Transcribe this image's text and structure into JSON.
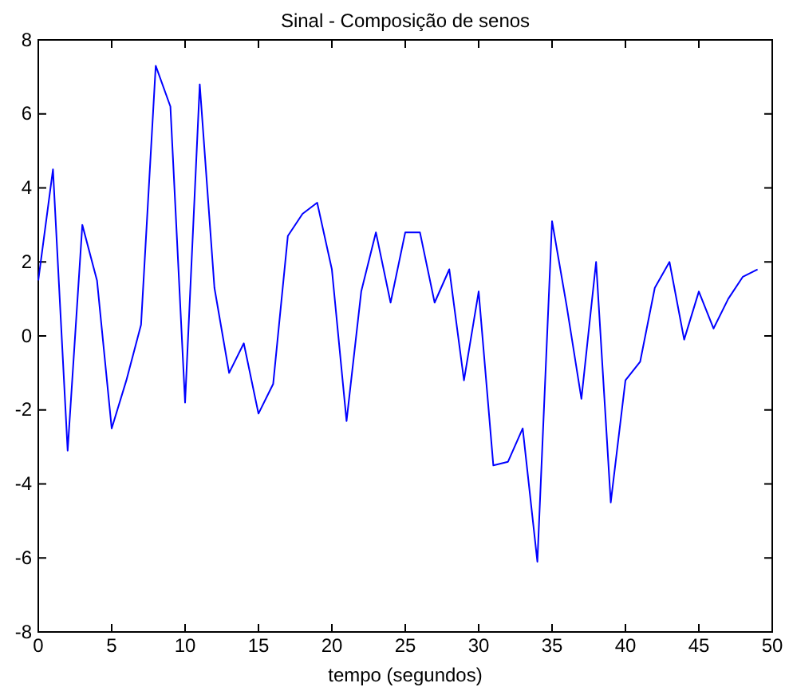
{
  "chart_data": {
    "type": "line",
    "title": "Sinal - Composição de senos",
    "xlabel": "tempo (segundos)",
    "x": [
      0,
      1,
      2,
      3,
      4,
      5,
      6,
      7,
      8,
      9,
      10,
      11,
      12,
      13,
      14,
      15,
      16,
      17,
      18,
      19,
      20,
      21,
      22,
      23,
      24,
      25,
      26,
      27,
      28,
      29,
      30,
      31,
      32,
      33,
      34,
      35,
      36,
      37,
      38,
      39,
      40,
      41,
      42,
      43,
      44,
      45,
      46,
      47,
      48,
      49
    ],
    "series": [
      {
        "color": "#0000ff",
        "values": [
          1.5,
          4.5,
          -3.1,
          3.0,
          1.5,
          -2.5,
          -1.2,
          0.3,
          7.3,
          6.2,
          -1.8,
          6.8,
          1.3,
          -1.0,
          -0.2,
          -2.1,
          -1.3,
          2.7,
          3.3,
          3.6,
          1.8,
          -2.3,
          1.2,
          2.8,
          0.9,
          2.8,
          2.8,
          0.9,
          1.8,
          -1.2,
          1.2,
          -3.5,
          -3.4,
          -2.5,
          -6.1,
          3.1,
          0.8,
          -1.7,
          2.0,
          -4.5,
          -1.2,
          -0.7,
          1.3,
          2.0,
          -0.1,
          1.2,
          0.2,
          1.0,
          1.6,
          1.8
        ]
      }
    ],
    "xlim": [
      0,
      50
    ],
    "xticks": [
      0,
      5,
      10,
      15,
      20,
      25,
      30,
      35,
      40,
      45,
      50
    ],
    "ylim": [
      -8,
      8
    ],
    "yticks": [
      -8,
      -6,
      -4,
      -2,
      0,
      2,
      4,
      6,
      8
    ],
    "grid": false,
    "marker": "none",
    "line_style": "solid"
  }
}
